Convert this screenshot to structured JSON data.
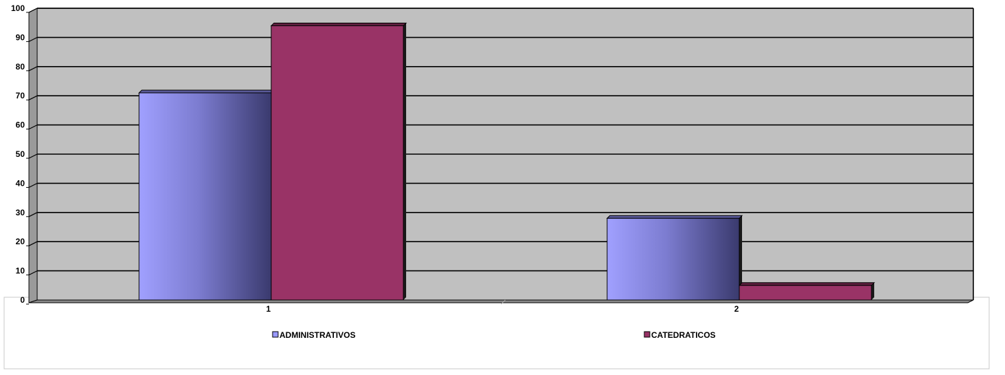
{
  "chart_data": {
    "type": "bar",
    "categories": [
      "1",
      "2"
    ],
    "series": [
      {
        "name": "ADMINISTRATIVOS",
        "values": [
          71,
          28
        ],
        "color": "#9999ff"
      },
      {
        "name": "CATEDRATICOS",
        "values": [
          94,
          5
        ],
        "color": "#993366"
      }
    ],
    "ylim": [
      0,
      100
    ],
    "yticks": [
      0,
      10,
      20,
      30,
      40,
      50,
      60,
      70,
      80,
      90,
      100
    ],
    "grid": true,
    "plot_background": "#c0c0c0",
    "legend_position": "bottom",
    "style": "3d-clustered-column"
  }
}
